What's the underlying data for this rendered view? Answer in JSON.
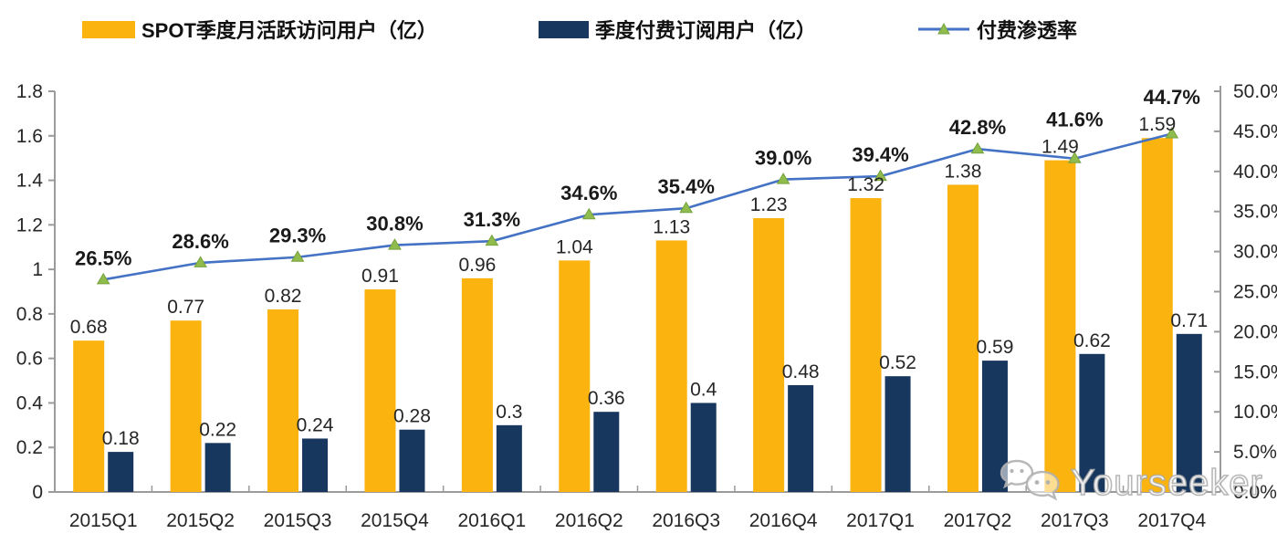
{
  "chart_data": {
    "type": "combo",
    "title": "",
    "categories": [
      "2015Q1",
      "2015Q2",
      "2015Q3",
      "2015Q4",
      "2016Q1",
      "2016Q2",
      "2016Q3",
      "2016Q4",
      "2017Q1",
      "2017Q2",
      "2017Q3",
      "2017Q4"
    ],
    "series": [
      {
        "name": "SPOT季度月活跃访问用户（亿）",
        "type": "bar",
        "axis": "left",
        "color": "#FBB40F",
        "values": [
          0.68,
          0.77,
          0.82,
          0.91,
          0.96,
          1.04,
          1.13,
          1.23,
          1.32,
          1.38,
          1.49,
          1.59
        ],
        "labels": [
          "0.68",
          "0.77",
          "0.82",
          "0.91",
          "0.96",
          "1.04",
          "1.13",
          "1.23",
          "1.32",
          "1.38",
          "1.49",
          "1.59"
        ]
      },
      {
        "name": "季度付费订阅用户（亿）",
        "type": "bar",
        "axis": "left",
        "color": "#17375E",
        "values": [
          0.18,
          0.22,
          0.24,
          0.28,
          0.3,
          0.36,
          0.4,
          0.48,
          0.52,
          0.59,
          0.62,
          0.71
        ],
        "labels": [
          "0.18",
          "0.22",
          "0.24",
          "0.28",
          "0.3",
          "0.36",
          "0.4",
          "0.48",
          "0.52",
          "0.59",
          "0.62",
          "0.71"
        ]
      },
      {
        "name": "付费渗透率",
        "type": "line",
        "axis": "right",
        "color": "#4472C4",
        "marker": "triangle",
        "marker_color": "#8FBC4C",
        "values": [
          26.5,
          28.6,
          29.3,
          30.8,
          31.3,
          34.6,
          35.4,
          39.0,
          39.4,
          42.8,
          41.6,
          44.7
        ],
        "labels": [
          "26.5%",
          "28.6%",
          "29.3%",
          "30.8%",
          "31.3%",
          "34.6%",
          "35.4%",
          "39.0%",
          "39.4%",
          "42.8%",
          "41.6%",
          "44.7%"
        ]
      }
    ],
    "left_axis": {
      "min": 0,
      "max": 1.8,
      "step": 0.2,
      "tick_labels": [
        "0",
        "0.2",
        "0.4",
        "0.6",
        "0.8",
        "1",
        "1.2",
        "1.4",
        "1.6",
        "1.8"
      ]
    },
    "right_axis": {
      "min": 0,
      "max": 50,
      "step": 5,
      "tick_labels": [
        "0.0%",
        "5.0%",
        "10.0%",
        "15.0%",
        "20.0%",
        "25.0%",
        "30.0%",
        "35.0%",
        "40.0%",
        "45.0%",
        "50.0%"
      ]
    },
    "grid": false,
    "legend_position": "top",
    "axis_color": "#9B9B9B",
    "text_color": "#262626"
  },
  "watermark": {
    "text": "Yourseeker"
  }
}
